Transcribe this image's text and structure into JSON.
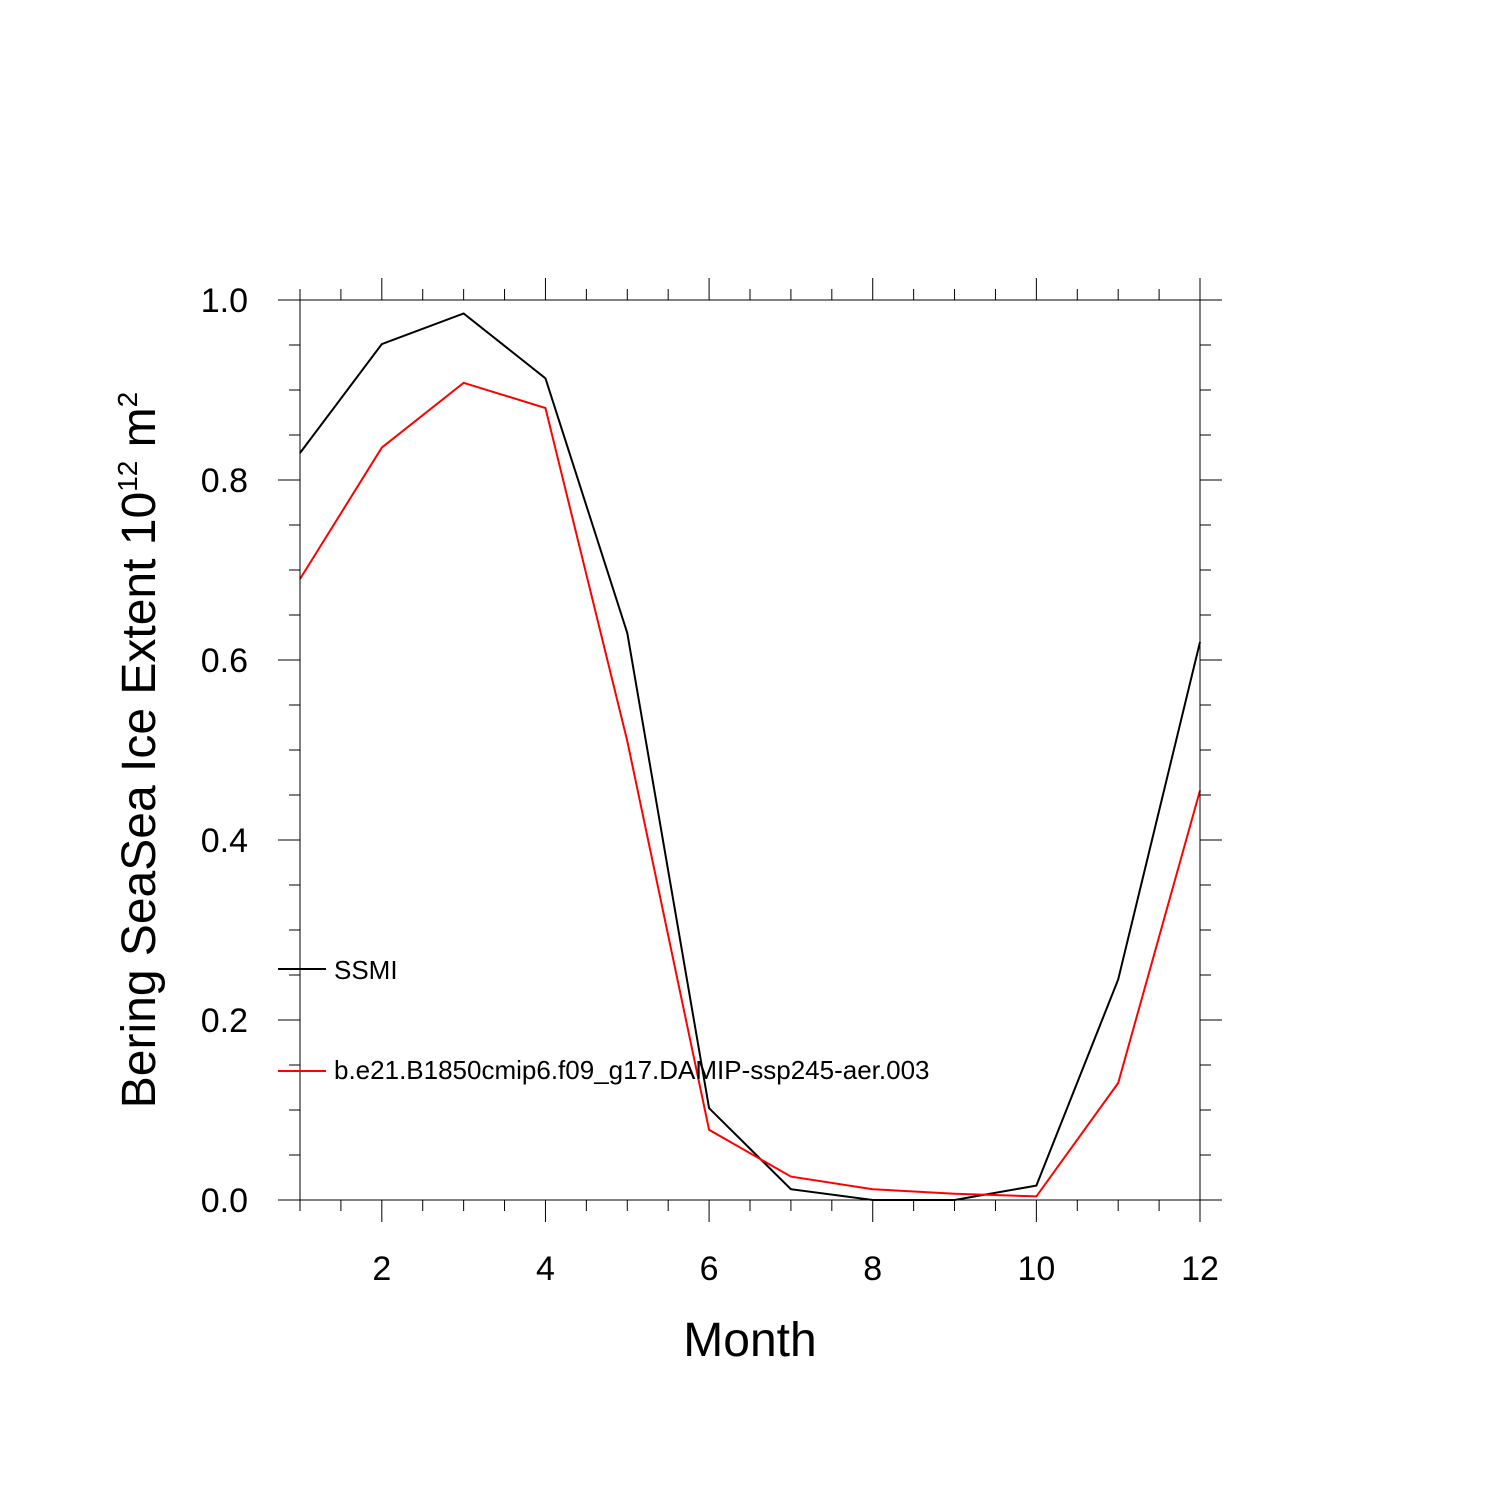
{
  "chart_data": {
    "type": "line",
    "title": "",
    "xlabel": "Month",
    "ylabel": {
      "base": "Bering SeaSea Ice Extent 10",
      "exp1": "12",
      "unit": " m",
      "exp2": "2"
    },
    "xlim": [
      1,
      12
    ],
    "ylim": [
      0.0,
      1.0
    ],
    "x": [
      1,
      2,
      3,
      4,
      5,
      6,
      7,
      8,
      9,
      10,
      11,
      12
    ],
    "x_ticks": [
      2,
      4,
      6,
      8,
      10,
      12
    ],
    "x_tick_labels": [
      "2",
      "4",
      "6",
      "8",
      "10",
      "12"
    ],
    "y_ticks": [
      0.0,
      0.2,
      0.4,
      0.6,
      0.8,
      1.0
    ],
    "y_tick_labels": [
      "0.0",
      "0.2",
      "0.4",
      "0.6",
      "0.8",
      "1.0"
    ],
    "grid": false,
    "legend_position": "lower-left",
    "series": [
      {
        "name": "SSMI",
        "color": "#000000",
        "values": [
          0.83,
          0.951,
          0.985,
          0.913,
          0.63,
          0.102,
          0.012,
          0.0,
          0.0,
          0.016,
          0.245,
          0.62
        ]
      },
      {
        "name": "b.e21.B1850cmip6.f09_g17.DAMIP-ssp245-aer.003",
        "color": "#ff0000",
        "values": [
          0.69,
          0.836,
          0.908,
          0.88,
          0.51,
          0.078,
          0.026,
          0.012,
          0.007,
          0.004,
          0.13,
          0.455
        ]
      }
    ]
  }
}
